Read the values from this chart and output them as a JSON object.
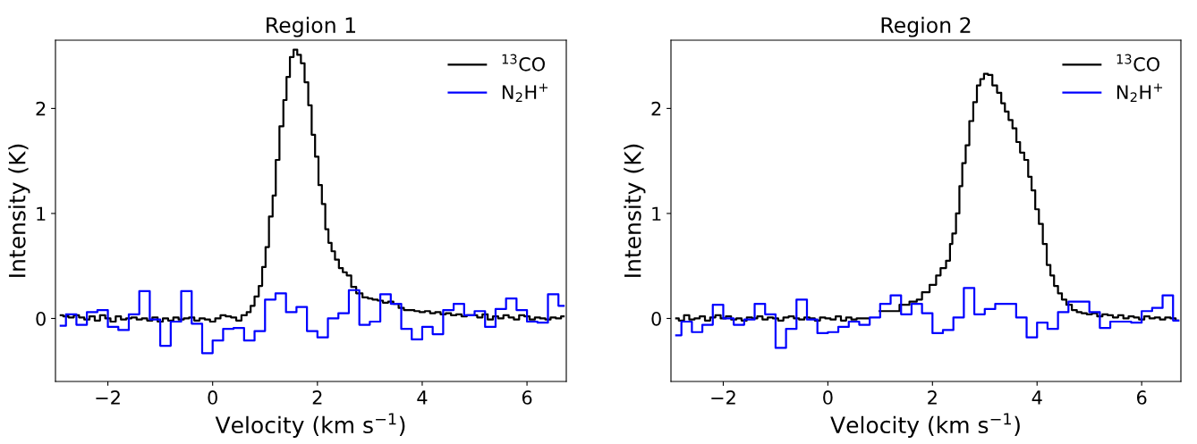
{
  "chart_data": [
    {
      "type": "step",
      "title": "Region 1",
      "xlabel": "Velocity (km s$^{−1}$)",
      "ylabel": "Intensity (K)",
      "xlim": [
        -3,
        6.75
      ],
      "ylim": [
        -0.6,
        2.65
      ],
      "xticks": [
        {
          "value": -2,
          "label": "−2"
        },
        0,
        2,
        4,
        6
      ],
      "yticks": [
        0,
        1,
        2
      ],
      "legend": "top right",
      "grid": false,
      "series": [
        {
          "name": "$^{13}$CO",
          "color": "#000000",
          "x": [
            -2.9,
            -2.8,
            -2.7,
            -2.6,
            -2.5,
            -2.4,
            -2.3,
            -2.2,
            -2.1,
            -2.0,
            -1.9,
            -1.8,
            -1.7,
            -1.6,
            -1.5,
            -1.4,
            -1.3,
            -1.2,
            -1.1,
            -1.0,
            -0.9,
            -0.8,
            -0.7,
            -0.6,
            -0.5,
            -0.4,
            -0.3,
            -0.2,
            -0.1,
            0.0,
            0.1,
            0.2,
            0.3,
            0.4,
            0.5,
            0.6,
            0.7,
            0.75,
            0.85,
            0.91,
            0.98,
            1.04,
            1.11,
            1.18,
            1.23,
            1.32,
            1.38,
            1.44,
            1.51,
            1.58,
            1.65,
            1.72,
            1.79,
            1.86,
            1.92,
            1.99,
            2.05,
            2.12,
            2.18,
            2.24,
            2.3,
            2.37,
            2.45,
            2.52,
            2.6,
            2.69,
            2.79,
            2.93,
            3.0,
            3.1,
            3.2,
            3.3,
            3.4,
            3.5,
            3.6,
            3.7,
            3.8,
            3.9,
            4.0,
            4.1,
            4.2,
            4.3,
            4.4,
            4.5,
            4.6,
            4.7,
            4.8,
            4.9,
            5.0,
            5.1,
            5.2,
            5.3,
            5.4,
            5.5,
            5.6,
            5.7,
            5.8,
            5.9,
            6.0,
            6.1,
            6.2,
            6.3,
            6.4,
            6.5,
            6.6,
            6.7
          ],
          "values": [
            0.03,
            0.02,
            0.01,
            0.03,
            0.01,
            -0.01,
            0.02,
            -0.02,
            0.03,
            0.0,
            -0.03,
            0.02,
            -0.01,
            0.0,
            0.01,
            -0.01,
            0.0,
            -0.02,
            0.01,
            -0.03,
            0.0,
            -0.02,
            0.01,
            -0.01,
            0.0,
            0.01,
            -0.02,
            0.0,
            -0.01,
            -0.03,
            0.0,
            0.03,
            0.02,
            0.01,
            -0.02,
            0.03,
            0.06,
            0.12,
            0.21,
            0.31,
            0.49,
            0.68,
            0.97,
            1.17,
            1.51,
            1.83,
            2.08,
            2.3,
            2.49,
            2.56,
            2.51,
            2.43,
            2.25,
            2.03,
            1.75,
            1.54,
            1.27,
            1.09,
            0.85,
            0.72,
            0.64,
            0.56,
            0.48,
            0.44,
            0.41,
            0.3,
            0.24,
            0.2,
            0.19,
            0.18,
            0.17,
            0.15,
            0.16,
            0.14,
            0.1,
            0.08,
            0.08,
            0.07,
            0.06,
            0.07,
            0.05,
            0.06,
            0.04,
            0.05,
            0.03,
            0.04,
            0.02,
            0.03,
            0.03,
            0.01,
            0.04,
            -0.01,
            0.02,
            0.0,
            0.03,
            0.01,
            -0.01,
            0.03,
            0.02,
            -0.01,
            0.01,
            0.0,
            -0.01,
            0.01,
            0.0,
            0.02
          ]
        },
        {
          "name": "N$_{2}$H$^{+}$",
          "color": "#0000ff",
          "x": [
            -2.9,
            -2.7,
            -2.5,
            -2.3,
            -2.1,
            -1.9,
            -1.7,
            -1.5,
            -1.3,
            -1.1,
            -0.9,
            -0.7,
            -0.5,
            -0.3,
            -0.1,
            0.1,
            0.3,
            0.5,
            0.7,
            0.9,
            1.1,
            1.3,
            1.5,
            1.7,
            1.9,
            2.1,
            2.3,
            2.5,
            2.7,
            2.9,
            3.1,
            3.3,
            3.5,
            3.7,
            3.9,
            4.1,
            4.3,
            4.5,
            4.7,
            4.9,
            5.1,
            5.3,
            5.5,
            5.7,
            5.9,
            6.1,
            6.3,
            6.5,
            6.7
          ],
          "values": [
            -0.07,
            0.04,
            -0.06,
            0.06,
            0.08,
            -0.08,
            -0.11,
            0.04,
            0.26,
            -0.01,
            -0.26,
            -0.03,
            0.26,
            -0.05,
            -0.33,
            -0.21,
            -0.1,
            -0.09,
            -0.21,
            -0.12,
            0.18,
            0.24,
            0.06,
            0.11,
            -0.12,
            -0.18,
            0.0,
            0.05,
            0.27,
            -0.06,
            -0.03,
            0.23,
            0.14,
            -0.1,
            -0.2,
            -0.08,
            -0.15,
            0.08,
            0.14,
            0.03,
            0.07,
            -0.08,
            0.09,
            0.19,
            0.08,
            -0.03,
            -0.04,
            0.23,
            0.12
          ]
        }
      ]
    },
    {
      "type": "step",
      "title": "Region 2",
      "xlabel": "Velocity (km s$^{−1}$)",
      "ylabel": "Intensity (K)",
      "xlim": [
        -3,
        6.75
      ],
      "ylim": [
        -0.6,
        2.65
      ],
      "xticks": [
        {
          "value": -2,
          "label": "−2"
        },
        0,
        2,
        4,
        6
      ],
      "yticks": [
        0,
        1,
        2
      ],
      "legend": "top right",
      "grid": false,
      "series": [
        {
          "name": "$^{13}$CO",
          "color": "#000000",
          "x": [
            -2.9,
            -2.8,
            -2.7,
            -2.6,
            -2.5,
            -2.4,
            -2.3,
            -2.2,
            -2.1,
            -2.0,
            -1.9,
            -1.8,
            -1.7,
            -1.6,
            -1.5,
            -1.4,
            -1.3,
            -1.2,
            -1.1,
            -1.0,
            -0.9,
            -0.8,
            -0.7,
            -0.6,
            -0.5,
            -0.4,
            -0.3,
            -0.2,
            -0.1,
            0.0,
            0.1,
            0.2,
            0.3,
            0.4,
            0.5,
            0.6,
            0.7,
            0.89,
            1.09,
            1.28,
            1.46,
            1.66,
            1.74,
            1.86,
            2.03,
            2.11,
            2.2,
            2.32,
            2.35,
            2.41,
            2.49,
            2.54,
            2.6,
            2.67,
            2.74,
            2.82,
            2.88,
            2.95,
            3.02,
            3.1,
            3.19,
            3.28,
            3.35,
            3.42,
            3.49,
            3.57,
            3.64,
            3.71,
            3.8,
            3.86,
            3.93,
            4.0,
            4.07,
            4.15,
            4.22,
            4.29,
            4.36,
            4.44,
            4.51,
            4.61,
            4.72,
            4.8,
            4.9,
            5.0,
            5.1,
            5.2,
            5.3,
            5.4,
            5.5,
            5.6,
            5.7,
            5.8,
            5.9,
            6.0,
            6.1,
            6.2,
            6.3,
            6.4,
            6.5,
            6.6,
            6.7
          ],
          "values": [
            0.0,
            -0.02,
            0.03,
            -0.01,
            0.0,
            0.02,
            -0.02,
            0.01,
            0.03,
            0.0,
            0.02,
            -0.01,
            0.0,
            -0.02,
            0.01,
            0.0,
            0.02,
            -0.01,
            0.01,
            0.0,
            -0.02,
            0.01,
            0.02,
            0.0,
            -0.01,
            0.01,
            0.0,
            -0.02,
            0.01,
            0.0,
            -0.01,
            0.02,
            -0.02,
            0.01,
            -0.01,
            0.0,
            0.0,
            null,
            0.07,
            0.07,
            0.13,
            0.16,
            0.18,
            0.25,
            0.32,
            0.41,
            0.48,
            0.55,
            0.71,
            0.81,
            1.0,
            1.26,
            1.48,
            1.65,
            1.88,
            2.06,
            2.22,
            2.28,
            2.33,
            2.32,
            2.22,
            2.15,
            2.05,
            1.97,
            1.89,
            1.81,
            1.68,
            1.58,
            1.51,
            1.35,
            1.22,
            1.04,
            0.9,
            0.71,
            0.51,
            0.41,
            0.31,
            0.24,
            0.18,
            0.13,
            0.08,
            0.06,
            0.05,
            0.04,
            0.05,
            0.02,
            0.04,
            0.03,
            0.01,
            0.03,
            0.0,
            0.02,
            0.01,
            -0.01,
            0.02,
            0.0,
            0.01,
            -0.01,
            0.01,
            0.0,
            -0.02
          ]
        },
        {
          "name": "N$_{2}$H$^{+}$",
          "color": "#0000ff",
          "x": [
            -2.9,
            -2.7,
            -2.5,
            -2.3,
            -2.1,
            -1.9,
            -1.7,
            -1.5,
            -1.3,
            -1.1,
            -0.9,
            -0.7,
            -0.5,
            -0.3,
            -0.1,
            0.1,
            0.3,
            0.5,
            0.7,
            0.9,
            1.1,
            1.3,
            1.5,
            1.7,
            1.9,
            2.1,
            2.3,
            2.5,
            2.7,
            2.9,
            3.1,
            3.3,
            3.5,
            3.7,
            3.9,
            4.1,
            4.3,
            4.5,
            4.7,
            4.9,
            5.1,
            5.3,
            5.5,
            5.7,
            5.9,
            6.1,
            6.3,
            6.5,
            6.7
          ],
          "values": [
            -0.16,
            -0.03,
            -0.13,
            -0.06,
            0.13,
            0.0,
            -0.06,
            -0.01,
            0.14,
            0.04,
            -0.28,
            -0.1,
            0.18,
            -0.01,
            -0.14,
            -0.13,
            -0.08,
            -0.03,
            -0.06,
            0.01,
            0.14,
            0.22,
            0.04,
            0.14,
            0.05,
            -0.14,
            -0.11,
            0.01,
            0.29,
            0.04,
            0.09,
            0.14,
            0.14,
            0.01,
            -0.18,
            -0.04,
            -0.1,
            0.06,
            0.16,
            0.16,
            0.06,
            -0.09,
            -0.03,
            -0.03,
            -0.04,
            0.07,
            0.1,
            0.22,
            -0.02
          ]
        }
      ]
    }
  ]
}
